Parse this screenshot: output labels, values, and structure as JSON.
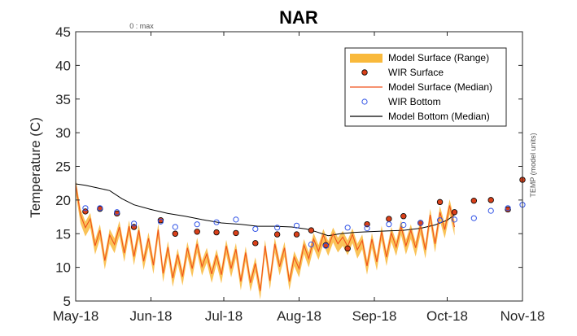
{
  "chart_data": {
    "type": "line",
    "title": "NAR",
    "ylabel": "Temperature (C)",
    "xlabel": "",
    "top_note": "0 : max",
    "right_note": "TEMP (model units)",
    "ylim": [
      5,
      45
    ],
    "yticks": [
      5,
      10,
      15,
      20,
      25,
      30,
      35,
      40,
      45
    ],
    "xlim": [
      "2018-05-01",
      "2018-11-01"
    ],
    "xticks": [
      {
        "date": "2018-05-01",
        "label": "May-18"
      },
      {
        "date": "2018-06-01",
        "label": "Jun-18"
      },
      {
        "date": "2018-07-01",
        "label": "Jul-18"
      },
      {
        "date": "2018-08-01",
        "label": "Aug-18"
      },
      {
        "date": "2018-09-01",
        "label": "Sep-18"
      },
      {
        "date": "2018-10-01",
        "label": "Oct-18"
      },
      {
        "date": "2018-11-01",
        "label": "Nov-18"
      }
    ],
    "grid": false,
    "legend_position": "top-right",
    "legend": [
      {
        "label": "Model Surface (Range)",
        "kind": "patch",
        "color": "#f9b93b"
      },
      {
        "label": "WIR Surface",
        "kind": "marker-filled",
        "color": "#d9401a"
      },
      {
        "label": "Model Surface (Median)",
        "kind": "line",
        "color": "#f0501a"
      },
      {
        "label": "WIR Bottom",
        "kind": "marker-open",
        "color": "#3355e6"
      },
      {
        "label": "Model Bottom (Median)",
        "kind": "line",
        "color": "#000000"
      }
    ],
    "series": [
      {
        "name": "WIR Surface",
        "kind": "marker-filled",
        "color": "#d9401a",
        "points": [
          [
            "2018-05-05",
            18.3
          ],
          [
            "2018-05-11",
            18.7
          ],
          [
            "2018-05-18",
            18.0
          ],
          [
            "2018-05-25",
            16.0
          ],
          [
            "2018-06-05",
            17.0
          ],
          [
            "2018-06-11",
            15.0
          ],
          [
            "2018-06-20",
            15.3
          ],
          [
            "2018-06-28",
            15.2
          ],
          [
            "2018-07-06",
            15.1
          ],
          [
            "2018-07-14",
            13.6
          ],
          [
            "2018-07-23",
            14.9
          ],
          [
            "2018-07-31",
            14.9
          ],
          [
            "2018-08-06",
            15.5
          ],
          [
            "2018-08-12",
            13.3
          ],
          [
            "2018-08-21",
            12.8
          ],
          [
            "2018-08-29",
            16.4
          ],
          [
            "2018-09-07",
            17.2
          ],
          [
            "2018-09-13",
            17.6
          ],
          [
            "2018-09-20",
            16.6
          ],
          [
            "2018-09-28",
            19.7
          ],
          [
            "2018-10-04",
            18.2
          ],
          [
            "2018-10-12",
            19.9
          ],
          [
            "2018-10-19",
            20.0
          ],
          [
            "2018-10-26",
            18.6
          ],
          [
            "2018-11-01",
            23.0
          ]
        ]
      },
      {
        "name": "WIR Bottom",
        "kind": "marker-open",
        "color": "#3355e6",
        "points": [
          [
            "2018-05-05",
            18.8
          ],
          [
            "2018-05-11",
            18.8
          ],
          [
            "2018-05-18",
            18.2
          ],
          [
            "2018-05-25",
            16.5
          ],
          [
            "2018-06-05",
            16.8
          ],
          [
            "2018-06-11",
            16.0
          ],
          [
            "2018-06-20",
            16.4
          ],
          [
            "2018-06-28",
            16.7
          ],
          [
            "2018-07-06",
            17.1
          ],
          [
            "2018-07-14",
            15.7
          ],
          [
            "2018-07-23",
            15.9
          ],
          [
            "2018-07-31",
            16.2
          ],
          [
            "2018-08-06",
            13.4
          ],
          [
            "2018-08-12",
            13.2
          ],
          [
            "2018-08-21",
            15.9
          ],
          [
            "2018-08-29",
            15.8
          ],
          [
            "2018-09-07",
            16.4
          ],
          [
            "2018-09-13",
            16.3
          ],
          [
            "2018-09-20",
            16.6
          ],
          [
            "2018-09-28",
            17.0
          ],
          [
            "2018-10-04",
            17.1
          ],
          [
            "2018-10-12",
            17.3
          ],
          [
            "2018-10-19",
            18.4
          ],
          [
            "2018-10-26",
            18.8
          ],
          [
            "2018-11-01",
            19.3
          ]
        ]
      },
      {
        "name": "Model Bottom (Median)",
        "kind": "line",
        "color": "#000000",
        "points": [
          [
            "2018-05-01",
            22.4
          ],
          [
            "2018-05-05",
            22.2
          ],
          [
            "2018-05-10",
            21.8
          ],
          [
            "2018-05-15",
            21.4
          ],
          [
            "2018-05-20",
            20.2
          ],
          [
            "2018-05-25",
            19.3
          ],
          [
            "2018-06-01",
            18.6
          ],
          [
            "2018-06-08",
            18.0
          ],
          [
            "2018-06-15",
            17.6
          ],
          [
            "2018-06-22",
            17.1
          ],
          [
            "2018-06-30",
            16.6
          ],
          [
            "2018-07-08",
            16.4
          ],
          [
            "2018-07-15",
            16.1
          ],
          [
            "2018-07-22",
            16.1
          ],
          [
            "2018-07-29",
            16.0
          ],
          [
            "2018-08-04",
            15.7
          ],
          [
            "2018-08-08",
            15.3
          ],
          [
            "2018-08-13",
            14.7
          ],
          [
            "2018-08-18",
            15.0
          ],
          [
            "2018-08-24",
            15.2
          ],
          [
            "2018-08-30",
            15.3
          ],
          [
            "2018-09-06",
            15.4
          ],
          [
            "2018-09-13",
            15.5
          ],
          [
            "2018-09-20",
            15.8
          ],
          [
            "2018-09-26",
            16.3
          ],
          [
            "2018-10-01",
            17.0
          ],
          [
            "2018-10-04",
            17.8
          ]
        ]
      },
      {
        "name": "Model Surface (Median)",
        "kind": "line",
        "color": "#f0501a",
        "points": [
          [
            "2018-05-01",
            22.3
          ],
          [
            "2018-05-03",
            17.8
          ],
          [
            "2018-05-05",
            15.9
          ],
          [
            "2018-05-07",
            17.2
          ],
          [
            "2018-05-09",
            13.2
          ],
          [
            "2018-05-11",
            15.5
          ],
          [
            "2018-05-13",
            11.0
          ],
          [
            "2018-05-15",
            14.8
          ],
          [
            "2018-05-17",
            13.4
          ],
          [
            "2018-05-19",
            16.0
          ],
          [
            "2018-05-21",
            12.1
          ],
          [
            "2018-05-23",
            16.1
          ],
          [
            "2018-05-25",
            11.6
          ],
          [
            "2018-05-27",
            15.5
          ],
          [
            "2018-05-29",
            10.9
          ],
          [
            "2018-05-31",
            14.3
          ],
          [
            "2018-06-02",
            10.3
          ],
          [
            "2018-06-04",
            15.6
          ],
          [
            "2018-06-06",
            9.1
          ],
          [
            "2018-06-08",
            13.0
          ],
          [
            "2018-06-10",
            8.4
          ],
          [
            "2018-06-12",
            11.9
          ],
          [
            "2018-06-14",
            8.6
          ],
          [
            "2018-06-16",
            12.9
          ],
          [
            "2018-06-18",
            9.8
          ],
          [
            "2018-06-20",
            13.5
          ],
          [
            "2018-06-22",
            10.1
          ],
          [
            "2018-06-24",
            12.0
          ],
          [
            "2018-06-26",
            9.0
          ],
          [
            "2018-06-28",
            11.8
          ],
          [
            "2018-06-30",
            8.9
          ],
          [
            "2018-07-02",
            13.2
          ],
          [
            "2018-07-04",
            9.8
          ],
          [
            "2018-07-06",
            12.7
          ],
          [
            "2018-07-08",
            7.9
          ],
          [
            "2018-07-10",
            12.2
          ],
          [
            "2018-07-12",
            7.7
          ],
          [
            "2018-07-14",
            10.6
          ],
          [
            "2018-07-16",
            6.5
          ],
          [
            "2018-07-18",
            13.2
          ],
          [
            "2018-07-20",
            8.0
          ],
          [
            "2018-07-22",
            13.5
          ],
          [
            "2018-07-24",
            10.1
          ],
          [
            "2018-07-26",
            12.9
          ],
          [
            "2018-07-28",
            7.9
          ],
          [
            "2018-07-30",
            11.5
          ],
          [
            "2018-08-01",
            9.8
          ],
          [
            "2018-08-03",
            13.3
          ],
          [
            "2018-08-05",
            11.3
          ],
          [
            "2018-08-07",
            14.2
          ],
          [
            "2018-08-09",
            12.4
          ],
          [
            "2018-08-11",
            14.8
          ],
          [
            "2018-08-13",
            13.0
          ],
          [
            "2018-08-15",
            15.0
          ],
          [
            "2018-08-17",
            13.5
          ],
          [
            "2018-08-19",
            14.5
          ],
          [
            "2018-08-21",
            13.1
          ],
          [
            "2018-08-23",
            14.9
          ],
          [
            "2018-08-25",
            12.6
          ],
          [
            "2018-08-27",
            14.0
          ],
          [
            "2018-08-29",
            10.2
          ],
          [
            "2018-08-31",
            14.2
          ],
          [
            "2018-09-02",
            10.8
          ],
          [
            "2018-09-04",
            15.3
          ],
          [
            "2018-09-06",
            11.5
          ],
          [
            "2018-09-08",
            15.1
          ],
          [
            "2018-09-10",
            13.0
          ],
          [
            "2018-09-12",
            16.1
          ],
          [
            "2018-09-14",
            13.2
          ],
          [
            "2018-09-16",
            15.5
          ],
          [
            "2018-09-18",
            12.9
          ],
          [
            "2018-09-20",
            16.2
          ],
          [
            "2018-09-22",
            12.6
          ],
          [
            "2018-09-24",
            17.8
          ],
          [
            "2018-09-26",
            13.5
          ],
          [
            "2018-09-28",
            18.2
          ],
          [
            "2018-09-30",
            15.6
          ],
          [
            "2018-10-02",
            19.2
          ],
          [
            "2018-10-04",
            16.0
          ]
        ]
      }
    ]
  }
}
